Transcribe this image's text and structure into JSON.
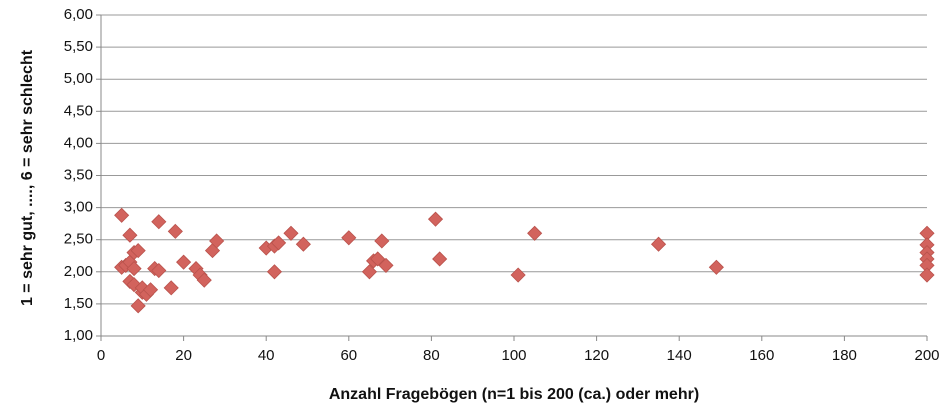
{
  "chart_data": {
    "type": "scatter",
    "x_label": "Anzahl Fragebögen (n=1 bis 200 (ca.) oder mehr)",
    "y_label": "1 = sehr gut, ...., 6 = sehr schlecht",
    "color": "#d2635d",
    "x": [
      5,
      5,
      6,
      7,
      7,
      7,
      8,
      8,
      8,
      9,
      9,
      10,
      10,
      11,
      12,
      13,
      14,
      14,
      17,
      18,
      20,
      23,
      24,
      25,
      27,
      28,
      40,
      42,
      43,
      42,
      46,
      49,
      60,
      65,
      66,
      67,
      68,
      69,
      81,
      82,
      101,
      105,
      135,
      149,
      200,
      200,
      200,
      200,
      200,
      200
    ],
    "y": [
      2.88,
      2.07,
      2.1,
      2.57,
      2.15,
      1.85,
      2.3,
      2.05,
      1.8,
      2.33,
      1.47,
      1.68,
      1.75,
      1.65,
      1.72,
      2.05,
      2.02,
      2.78,
      1.75,
      2.63,
      2.15,
      2.05,
      1.95,
      1.87,
      2.33,
      2.48,
      2.37,
      2.4,
      2.45,
      2.0,
      2.6,
      2.43,
      2.53,
      2.0,
      2.17,
      2.2,
      2.48,
      2.1,
      2.82,
      2.2,
      1.95,
      2.6,
      2.43,
      2.07,
      2.6,
      2.42,
      2.3,
      2.2,
      2.1,
      1.95
    ],
    "xlim": [
      0,
      200
    ],
    "xticks": [
      0,
      20,
      40,
      60,
      80,
      100,
      120,
      140,
      160,
      180,
      200
    ],
    "ylim": [
      1,
      6
    ],
    "yticks": [
      {
        "value": 1,
        "label": "1,00"
      },
      {
        "value": 1.5,
        "label": "1,50"
      },
      {
        "value": 2,
        "label": "2,00"
      },
      {
        "value": 2.5,
        "label": "2,50"
      },
      {
        "value": 3,
        "label": "3,00"
      },
      {
        "value": 3.5,
        "label": "3,50"
      },
      {
        "value": 4,
        "label": "4,00"
      },
      {
        "value": 4.5,
        "label": "4,50"
      },
      {
        "value": 5,
        "label": "5,00"
      },
      {
        "value": 5.5,
        "label": "5,50"
      },
      {
        "value": 6,
        "label": "6,00"
      }
    ],
    "grid": true
  }
}
